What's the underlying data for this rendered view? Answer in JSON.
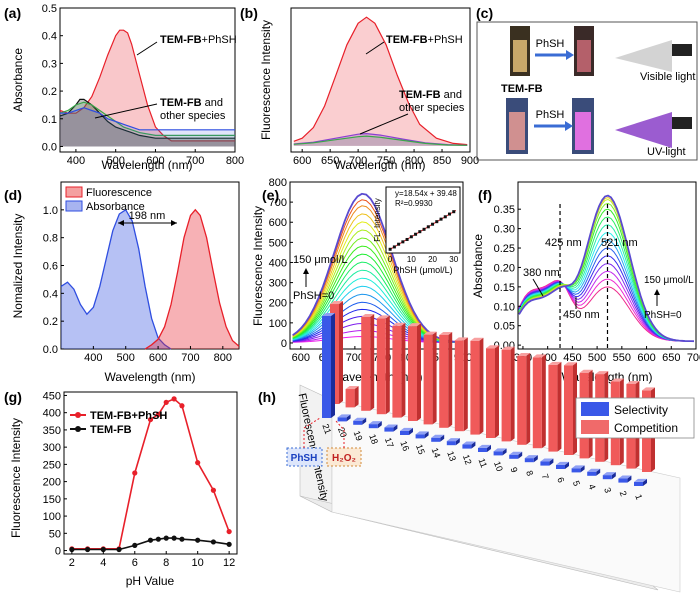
{
  "colors": {
    "red": "#e8202a",
    "black": "#111111",
    "blue": "#2f4ee0",
    "green": "#3aa64a",
    "purple": "#8a3fd0"
  },
  "panels": {
    "a": {
      "label": "(a)",
      "xlabel": "Wavelength (nm)",
      "ylabel": "Absorbance",
      "xticks": [
        "400",
        "500",
        "600",
        "700",
        "800"
      ],
      "yticks": [
        "0.0",
        "0.1",
        "0.2",
        "0.3",
        "0.4",
        "0.5"
      ],
      "ann1_bold": "TEM-FB",
      "ann1_rest": "+PhSH",
      "ann2_bold": "TEM-FB",
      "ann2_rest": " and",
      "ann2_line2": "other species"
    },
    "b": {
      "label": "(b)",
      "xlabel": "Wavelength (nm)",
      "ylabel": "Fluorescence Intensity",
      "xticks": [
        "600",
        "650",
        "700",
        "750",
        "800",
        "850",
        "900"
      ],
      "ann1_bold": "TEM-FB",
      "ann1_rest": "+PhSH",
      "ann2_bold": "TEM-FB",
      "ann2_rest": " and",
      "ann2_line2": "other species"
    },
    "c": {
      "label": "(c)",
      "arrow1": "PhSH",
      "arrow2": "PhSH",
      "caption": "TEM-FB",
      "light1": "Visible light",
      "light2": "UV-light"
    },
    "d": {
      "label": "(d)",
      "xlabel": "Wavelength (nm)",
      "ylabel": "Nomalized Intensity",
      "xticks": [
        "400",
        "500",
        "600",
        "700",
        "800"
      ],
      "yticks": [
        "0.0",
        "0.2",
        "0.4",
        "0.6",
        "0.8",
        "1.0"
      ],
      "legend": [
        "Fluorescence",
        "Absorbance"
      ],
      "gap": "198 nm"
    },
    "e": {
      "label": "(e)",
      "xlabel": "Wavelength (nm)",
      "ylabel": "Fluorescence Intensity",
      "xticks": [
        "600",
        "650",
        "700",
        "750",
        "800",
        "850",
        "900"
      ],
      "yticks": [
        "0",
        "100",
        "200",
        "300",
        "400",
        "500",
        "600",
        "700",
        "800"
      ],
      "conc_top": "150 μmol/L",
      "conc_bottom": "PhSH=0",
      "inset_eq": "y=18.54x + 39.48",
      "inset_r2": "R²=0.9930",
      "inset_xlabel": "PhSH (μmol/L)",
      "inset_ylabel": "FL. Intensity",
      "inset_xticks": [
        "0",
        "10",
        "20",
        "30"
      ]
    },
    "f": {
      "label": "(f)",
      "xlabel": "Wavelength (nm)",
      "ylabel": "Absorbance",
      "xticks": [
        "350",
        "400",
        "450",
        "500",
        "550",
        "600",
        "650",
        "700"
      ],
      "yticks": [
        "0.00",
        "0.05",
        "0.10",
        "0.15",
        "0.20",
        "0.25",
        "0.30",
        "0.35"
      ],
      "ann_425": "425 nm",
      "ann_521": "521 nm",
      "ann_380": "380 nm",
      "ann_450": "450 nm",
      "conc_top": "150 μmol/L",
      "conc_bottom": "PhSH=0"
    },
    "g": {
      "label": "(g)",
      "xlabel": "pH Value",
      "ylabel": "Fluorescence Intensity",
      "xticks": [
        "2",
        "4",
        "6",
        "8",
        "10",
        "12"
      ],
      "yticks": [
        "0",
        "50",
        "100",
        "150",
        "200",
        "250",
        "300",
        "350",
        "400",
        "450"
      ]
    },
    "h": {
      "label": "(h)",
      "ylabel": "Fluorescence Intensity",
      "legend": [
        "Selectivity",
        "Competition"
      ],
      "tag1": "PhSH",
      "tag2": "H₂O₂",
      "cat_labels": [
        "1",
        "2",
        "3",
        "4",
        "5",
        "6",
        "7",
        "8",
        "9",
        "10",
        "11",
        "12",
        "13",
        "14",
        "15",
        "16",
        "17",
        "18",
        "19",
        "20",
        "21"
      ]
    }
  },
  "chart_data": [
    {
      "type": "line",
      "panel": "a",
      "xlabel": "Wavelength (nm)",
      "ylabel": "Absorbance",
      "xlim": [
        360,
        800
      ],
      "ylim": [
        0,
        0.5
      ],
      "series": [
        {
          "name": "TEM-FB+PhSH",
          "x": [
            360,
            380,
            400,
            420,
            440,
            460,
            480,
            500,
            510,
            520,
            530,
            540,
            560,
            580,
            600,
            620,
            640,
            660,
            700,
            800
          ],
          "values": [
            0.13,
            0.12,
            0.12,
            0.14,
            0.18,
            0.25,
            0.33,
            0.4,
            0.42,
            0.42,
            0.41,
            0.37,
            0.26,
            0.15,
            0.07,
            0.04,
            0.02,
            0.02,
            0.02,
            0.02
          ]
        },
        {
          "x": [
            360,
            380,
            400,
            410,
            420,
            440,
            460,
            480,
            500,
            520,
            540,
            560,
            600,
            700,
            800
          ],
          "values": [
            0.11,
            0.12,
            0.15,
            0.17,
            0.17,
            0.15,
            0.12,
            0.09,
            0.07,
            0.06,
            0.05,
            0.04,
            0.03,
            0.03,
            0.03
          ]
        },
        {
          "x": [
            360,
            380,
            400,
            420,
            440,
            460,
            480,
            500,
            520,
            540,
            560,
            600,
            700,
            800
          ],
          "values": [
            0.12,
            0.13,
            0.15,
            0.16,
            0.15,
            0.13,
            0.11,
            0.09,
            0.07,
            0.06,
            0.05,
            0.04,
            0.04,
            0.04
          ]
        },
        {
          "x": [
            360,
            380,
            400,
            420,
            440,
            460,
            480,
            500,
            520,
            540,
            560,
            600,
            700,
            800
          ],
          "values": [
            0.12,
            0.12,
            0.13,
            0.14,
            0.13,
            0.12,
            0.1,
            0.09,
            0.08,
            0.07,
            0.06,
            0.06,
            0.06,
            0.06
          ]
        }
      ]
    },
    {
      "type": "line",
      "panel": "b",
      "xlabel": "Wavelength (nm)",
      "ylabel": "Fluorescence Intensity",
      "xlim": [
        580,
        900
      ],
      "ylim": [
        0,
        450
      ],
      "series": [
        {
          "name": "TEM-FB+PhSH",
          "x": [
            585,
            600,
            620,
            640,
            660,
            680,
            700,
            715,
            730,
            750,
            770,
            790,
            810,
            840,
            870,
            895
          ],
          "values": [
            15,
            25,
            60,
            130,
            230,
            330,
            400,
            420,
            400,
            330,
            230,
            140,
            70,
            25,
            8,
            4
          ]
        },
        {
          "x": [
            585,
            620,
            660,
            700,
            715,
            740,
            780,
            820,
            860,
            895
          ],
          "values": [
            6,
            12,
            25,
            38,
            40,
            35,
            22,
            10,
            4,
            2
          ]
        },
        {
          "x": [
            585,
            620,
            660,
            700,
            715,
            740,
            780,
            820,
            860,
            895
          ],
          "values": [
            5,
            10,
            20,
            30,
            32,
            28,
            18,
            8,
            3,
            2
          ]
        }
      ]
    },
    {
      "type": "area",
      "panel": "d",
      "xlabel": "Wavelength (nm)",
      "ylabel": "Nomalized Intensity",
      "xlim": [
        300,
        850
      ],
      "ylim": [
        0,
        1.2
      ],
      "series": [
        {
          "name": "Absorbance",
          "x": [
            300,
            320,
            340,
            360,
            380,
            400,
            420,
            440,
            460,
            480,
            500,
            520,
            540,
            560,
            580,
            600,
            620,
            640
          ],
          "values": [
            0.45,
            0.48,
            0.43,
            0.32,
            0.25,
            0.3,
            0.45,
            0.65,
            0.85,
            0.97,
            1.0,
            0.92,
            0.72,
            0.45,
            0.22,
            0.08,
            0.03,
            0.0
          ]
        },
        {
          "name": "Fluorescence",
          "x": [
            560,
            580,
            600,
            620,
            640,
            660,
            680,
            700,
            715,
            730,
            750,
            770,
            790,
            810,
            830,
            850
          ],
          "values": [
            0.0,
            0.03,
            0.07,
            0.16,
            0.32,
            0.55,
            0.8,
            0.96,
            1.0,
            0.96,
            0.8,
            0.56,
            0.33,
            0.16,
            0.06,
            0.02
          ]
        }
      ]
    },
    {
      "type": "line",
      "panel": "e",
      "xlabel": "Wavelength (nm)",
      "ylabel": "Fluorescence Intensity",
      "xlim": [
        580,
        900
      ],
      "ylim": [
        0,
        800
      ],
      "series_peak_values": [
        30,
        60,
        95,
        130,
        165,
        200,
        240,
        280,
        320,
        360,
        400,
        440,
        480,
        520,
        560,
        600,
        640,
        680,
        710,
        740
      ],
      "inset": {
        "type": "scatter",
        "xlabel": "PhSH (μmol/L)",
        "ylabel": "FL. Intensity",
        "x": [
          0,
          2,
          4,
          6,
          8,
          10,
          12,
          14,
          16,
          18,
          20,
          22,
          24,
          26,
          28,
          30
        ],
        "values": [
          40,
          75,
          115,
          150,
          185,
          225,
          262,
          300,
          335,
          372,
          410,
          448,
          485,
          520,
          560,
          595
        ],
        "fit": "y=18.54x + 39.48",
        "r2": "R²=0.9930"
      }
    },
    {
      "type": "line",
      "panel": "f",
      "xlabel": "Wavelength (nm)",
      "ylabel": "Absorbance",
      "xlim": [
        340,
        700
      ],
      "ylim": [
        0,
        0.4
      ],
      "series_peak_values": [
        0.14,
        0.16,
        0.18,
        0.2,
        0.22,
        0.24,
        0.26,
        0.28,
        0.3,
        0.32,
        0.34,
        0.355,
        0.365,
        0.37,
        0.375
      ],
      "markers": {
        "isosbestic": [
          425
        ],
        "peak": 521,
        "features": [
          380,
          450
        ]
      }
    },
    {
      "type": "line",
      "panel": "g",
      "xlabel": "pH Value",
      "ylabel": "Fluorescence Intensity",
      "xlim": [
        1.5,
        12.5
      ],
      "ylim": [
        -10,
        460
      ],
      "x": [
        2,
        3,
        4,
        5,
        6,
        7,
        7.5,
        8,
        8.5,
        9,
        10,
        11,
        12
      ],
      "series": [
        {
          "name": "TEM-FB+PhSH",
          "values": [
            5,
            5,
            5,
            5,
            225,
            380,
            395,
            430,
            440,
            420,
            255,
            175,
            55
          ]
        },
        {
          "name": "TEM-FB",
          "values": [
            3,
            3,
            3,
            3,
            15,
            30,
            33,
            36,
            36,
            33,
            30,
            25,
            18
          ]
        }
      ]
    },
    {
      "type": "bar",
      "panel": "h",
      "ylabel": "Fluorescence Intensity",
      "categories": [
        "1",
        "2",
        "3",
        "4",
        "5",
        "6",
        "7",
        "8",
        "9",
        "10",
        "11",
        "12",
        "13",
        "14",
        "15",
        "16",
        "17",
        "18",
        "19",
        "20",
        "21"
      ],
      "series": [
        {
          "name": "Selectivity",
          "values": [
            4,
            4,
            4,
            4,
            4,
            4,
            4,
            4,
            4,
            4,
            4,
            4,
            4,
            4,
            4,
            4,
            4,
            4,
            4,
            4,
            100
          ]
        },
        {
          "name": "Competition",
          "values": [
            80,
            83,
            82,
            86,
            84,
            88,
            85,
            89,
            87,
            90,
            88,
            92,
            89,
            91,
            88,
            93,
            90,
            94,
            92,
            18,
            98
          ]
        }
      ]
    }
  ]
}
